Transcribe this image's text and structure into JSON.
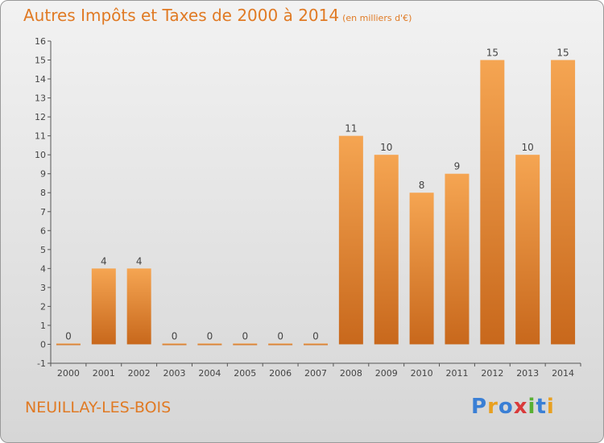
{
  "title": "Autres Impôts et Taxes de 2000 à 2014",
  "subtitle": "(en milliers d'€)",
  "commune": "NEUILLAY-LES-BOIS",
  "logo": {
    "text": "Proxiti",
    "colors": [
      "#3a7fd5",
      "#e8a020",
      "#3a7fd5",
      "#d93a3a",
      "#58b033",
      "#3a7fd5",
      "#e8a020"
    ]
  },
  "colors": {
    "accent": "#e07a24",
    "bar_top": "#f5a552",
    "bar_bottom": "#c8681c"
  },
  "chart_data": {
    "type": "bar",
    "categories": [
      "2000",
      "2001",
      "2002",
      "2003",
      "2004",
      "2005",
      "2006",
      "2007",
      "2008",
      "2009",
      "2010",
      "2011",
      "2012",
      "2013",
      "2014"
    ],
    "values": [
      0,
      4,
      4,
      0,
      0,
      0,
      0,
      0,
      11,
      10,
      8,
      9,
      15,
      10,
      15
    ],
    "ylim": [
      -1,
      16
    ],
    "yticks": [
      -1,
      0,
      1,
      2,
      3,
      4,
      5,
      6,
      7,
      8,
      9,
      10,
      11,
      12,
      13,
      14,
      15,
      16
    ],
    "grid": false,
    "xlabel": "",
    "ylabel": ""
  }
}
